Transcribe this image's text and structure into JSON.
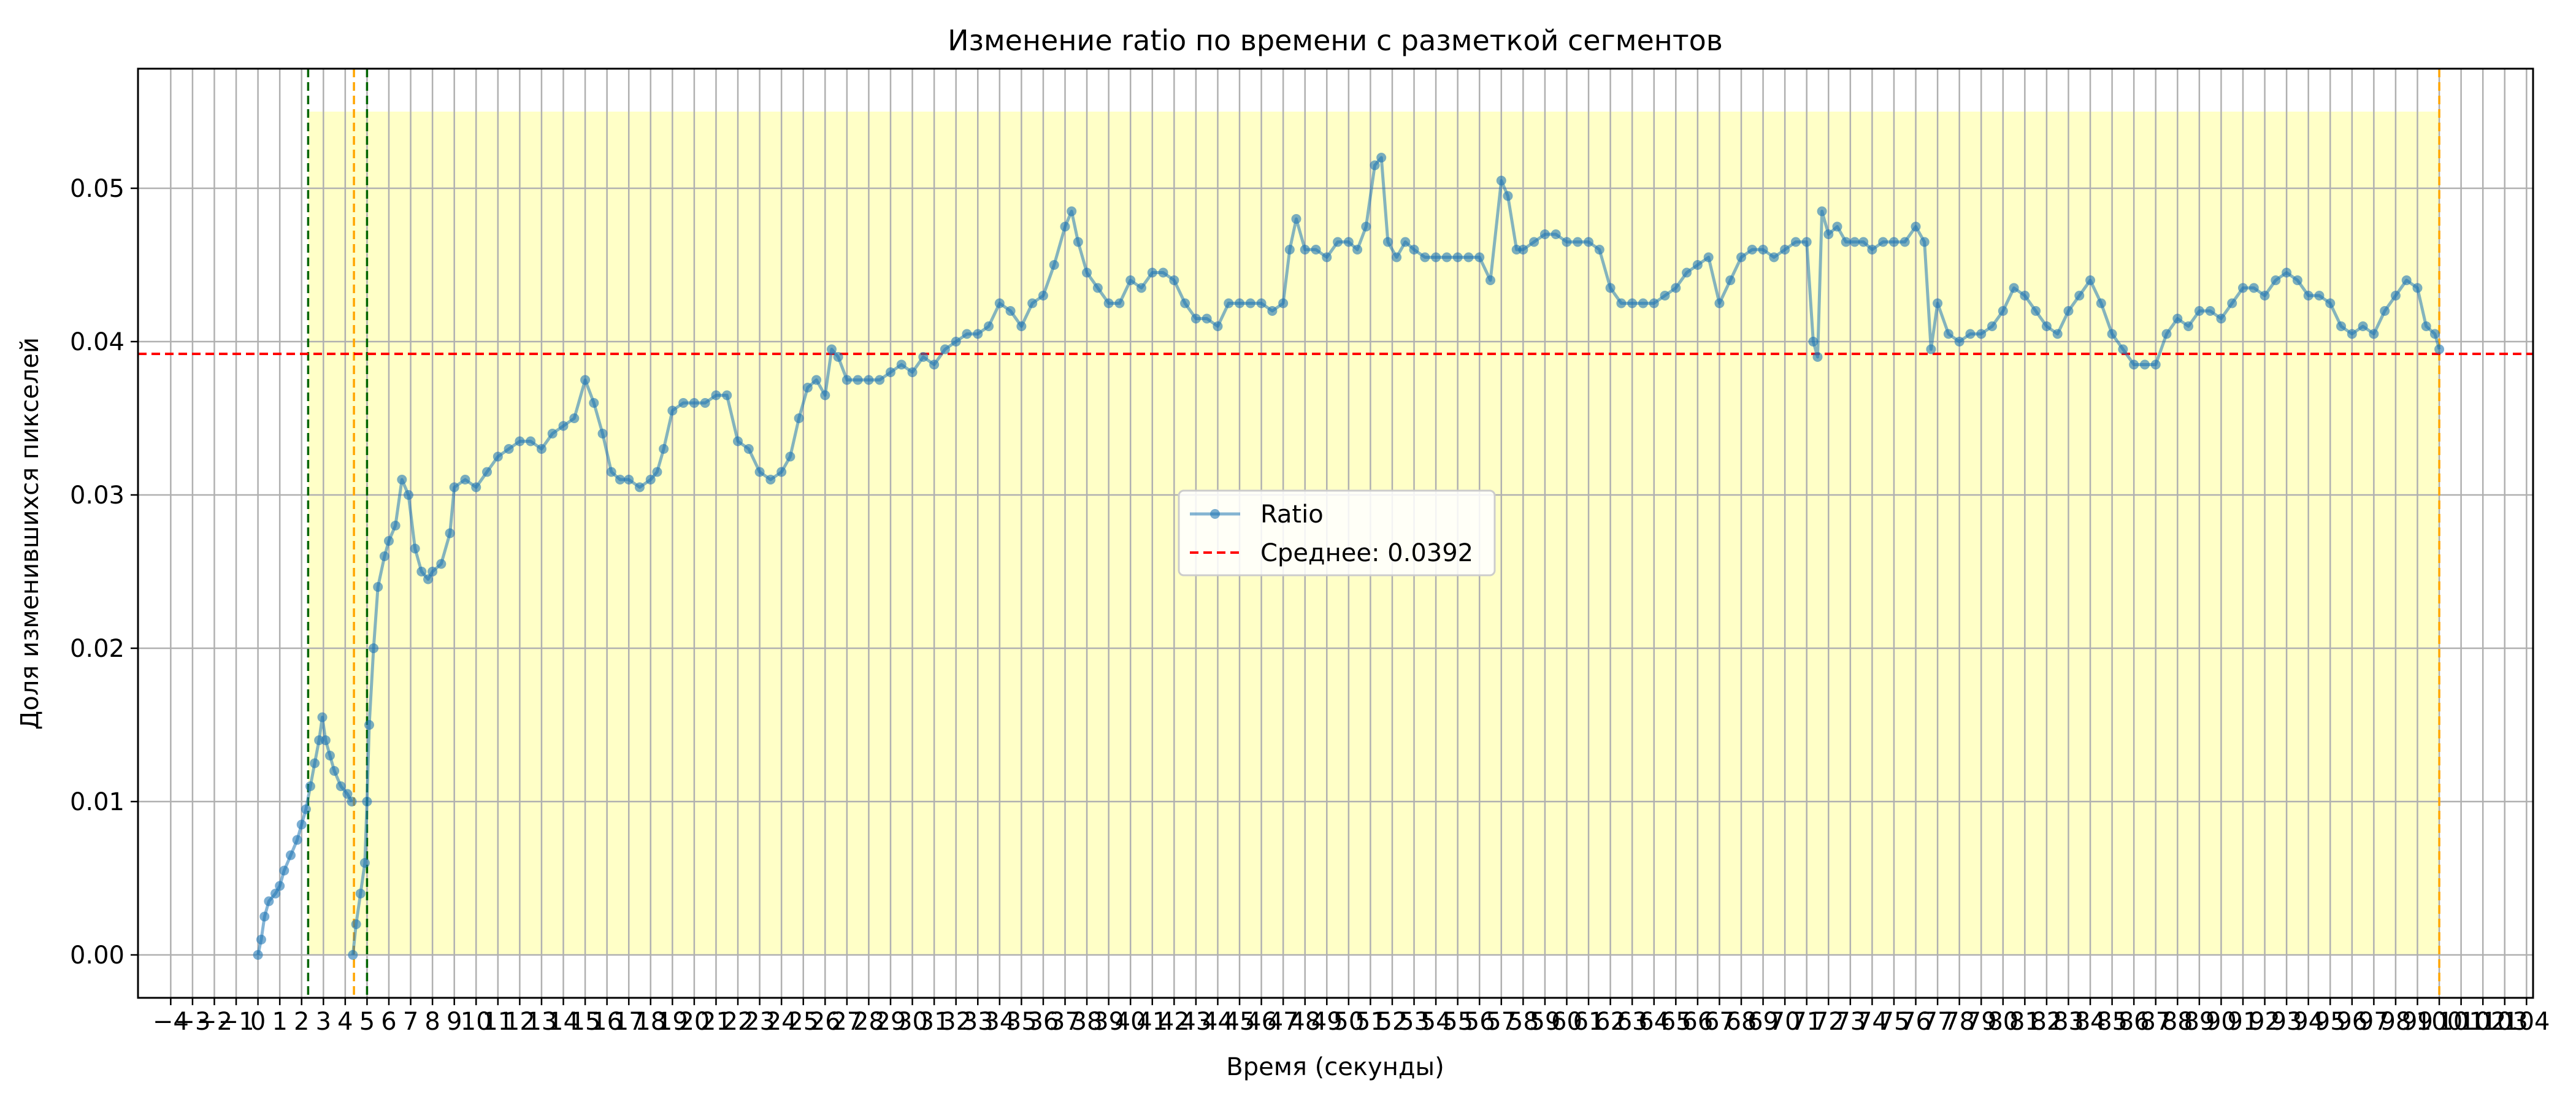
{
  "chart_data": {
    "type": "line",
    "title": "Изменение ratio по времени с разметкой сегментов",
    "xlabel": "Время (секунды)",
    "ylabel": "Доля изменившихся пикселей",
    "xlim": [
      -5.5,
      104.3
    ],
    "ylim": [
      -0.0028,
      0.0578
    ],
    "x_ticks": [
      -4,
      -3,
      -2,
      -1,
      0,
      1,
      2,
      3,
      4,
      5,
      6,
      7,
      8,
      9,
      10,
      11,
      12,
      13,
      14,
      15,
      16,
      17,
      18,
      19,
      20,
      21,
      22,
      23,
      24,
      25,
      26,
      27,
      28,
      29,
      30,
      31,
      32,
      33,
      34,
      35,
      36,
      37,
      38,
      39,
      40,
      41,
      42,
      43,
      44,
      45,
      46,
      47,
      48,
      49,
      50,
      51,
      52,
      53,
      54,
      55,
      56,
      57,
      58,
      59,
      60,
      61,
      62,
      63,
      64,
      65,
      66,
      67,
      68,
      69,
      70,
      71,
      72,
      73,
      74,
      75,
      76,
      77,
      78,
      79,
      80,
      81,
      82,
      83,
      84,
      85,
      86,
      87,
      88,
      89,
      90,
      91,
      92,
      93,
      94,
      95,
      96,
      97,
      98,
      99,
      100,
      101,
      102,
      103,
      104
    ],
    "y_ticks": [
      0.0,
      0.01,
      0.02,
      0.03,
      0.04,
      0.05
    ],
    "y_tick_labels": [
      "0.00",
      "0.01",
      "0.02",
      "0.03",
      "0.04",
      "0.05"
    ],
    "grid": true,
    "legend_position": "center",
    "series": [
      {
        "name": "Ratio",
        "color": "#1f77b4",
        "marker": "circle",
        "points": [
          [
            0.0,
            0.0
          ],
          [
            0.15,
            0.001
          ],
          [
            0.3,
            0.0025
          ],
          [
            0.5,
            0.0035
          ],
          [
            0.8,
            0.004
          ],
          [
            1.0,
            0.0045
          ],
          [
            1.2,
            0.0055
          ],
          [
            1.5,
            0.0065
          ],
          [
            1.8,
            0.0075
          ],
          [
            2.0,
            0.0085
          ],
          [
            2.2,
            0.0095
          ],
          [
            2.4,
            0.011
          ],
          [
            2.6,
            0.0125
          ],
          [
            2.8,
            0.014
          ],
          [
            2.95,
            0.0155
          ],
          [
            3.1,
            0.014
          ],
          [
            3.3,
            0.013
          ],
          [
            3.5,
            0.012
          ],
          [
            3.8,
            0.011
          ],
          [
            4.1,
            0.0105
          ],
          [
            4.3,
            0.01
          ],
          [
            4.35,
            0.0
          ],
          [
            4.5,
            0.002
          ],
          [
            4.7,
            0.004
          ],
          [
            4.9,
            0.006
          ],
          [
            5.0,
            0.01
          ],
          [
            5.1,
            0.015
          ],
          [
            5.3,
            0.02
          ],
          [
            5.5,
            0.024
          ],
          [
            5.8,
            0.026
          ],
          [
            6.0,
            0.027
          ],
          [
            6.3,
            0.028
          ],
          [
            6.6,
            0.031
          ],
          [
            6.9,
            0.03
          ],
          [
            7.2,
            0.0265
          ],
          [
            7.5,
            0.025
          ],
          [
            7.8,
            0.0245
          ],
          [
            8.0,
            0.025
          ],
          [
            8.4,
            0.0255
          ],
          [
            8.8,
            0.0275
          ],
          [
            9.0,
            0.0305
          ],
          [
            9.5,
            0.031
          ],
          [
            10.0,
            0.0305
          ],
          [
            10.5,
            0.0315
          ],
          [
            11.0,
            0.0325
          ],
          [
            11.5,
            0.033
          ],
          [
            12.0,
            0.0335
          ],
          [
            12.5,
            0.0335
          ],
          [
            13.0,
            0.033
          ],
          [
            13.5,
            0.034
          ],
          [
            14.0,
            0.0345
          ],
          [
            14.5,
            0.035
          ],
          [
            15.0,
            0.0375
          ],
          [
            15.4,
            0.036
          ],
          [
            15.8,
            0.034
          ],
          [
            16.2,
            0.0315
          ],
          [
            16.6,
            0.031
          ],
          [
            17.0,
            0.031
          ],
          [
            17.5,
            0.0305
          ],
          [
            18.0,
            0.031
          ],
          [
            18.3,
            0.0315
          ],
          [
            18.6,
            0.033
          ],
          [
            19.0,
            0.0355
          ],
          [
            19.5,
            0.036
          ],
          [
            20.0,
            0.036
          ],
          [
            20.5,
            0.036
          ],
          [
            21.0,
            0.0365
          ],
          [
            21.5,
            0.0365
          ],
          [
            22.0,
            0.0335
          ],
          [
            22.5,
            0.033
          ],
          [
            23.0,
            0.0315
          ],
          [
            23.5,
            0.031
          ],
          [
            24.0,
            0.0315
          ],
          [
            24.4,
            0.0325
          ],
          [
            24.8,
            0.035
          ],
          [
            25.2,
            0.037
          ],
          [
            25.6,
            0.0375
          ],
          [
            26.0,
            0.0365
          ],
          [
            26.3,
            0.0395
          ],
          [
            26.6,
            0.039
          ],
          [
            27.0,
            0.0375
          ],
          [
            27.5,
            0.0375
          ],
          [
            28.0,
            0.0375
          ],
          [
            28.5,
            0.0375
          ],
          [
            29.0,
            0.038
          ],
          [
            29.5,
            0.0385
          ],
          [
            30.0,
            0.038
          ],
          [
            30.5,
            0.039
          ],
          [
            31.0,
            0.0385
          ],
          [
            31.5,
            0.0395
          ],
          [
            32.0,
            0.04
          ],
          [
            32.5,
            0.0405
          ],
          [
            33.0,
            0.0405
          ],
          [
            33.5,
            0.041
          ],
          [
            34.0,
            0.0425
          ],
          [
            34.5,
            0.042
          ],
          [
            35.0,
            0.041
          ],
          [
            35.5,
            0.0425
          ],
          [
            36.0,
            0.043
          ],
          [
            36.5,
            0.045
          ],
          [
            37.0,
            0.0475
          ],
          [
            37.3,
            0.0485
          ],
          [
            37.6,
            0.0465
          ],
          [
            38.0,
            0.0445
          ],
          [
            38.5,
            0.0435
          ],
          [
            39.0,
            0.0425
          ],
          [
            39.5,
            0.0425
          ],
          [
            40.0,
            0.044
          ],
          [
            40.5,
            0.0435
          ],
          [
            41.0,
            0.0445
          ],
          [
            41.5,
            0.0445
          ],
          [
            42.0,
            0.044
          ],
          [
            42.5,
            0.0425
          ],
          [
            43.0,
            0.0415
          ],
          [
            43.5,
            0.0415
          ],
          [
            44.0,
            0.041
          ],
          [
            44.5,
            0.0425
          ],
          [
            45.0,
            0.0425
          ],
          [
            45.5,
            0.0425
          ],
          [
            46.0,
            0.0425
          ],
          [
            46.5,
            0.042
          ],
          [
            47.0,
            0.0425
          ],
          [
            47.3,
            0.046
          ],
          [
            47.6,
            0.048
          ],
          [
            48.0,
            0.046
          ],
          [
            48.5,
            0.046
          ],
          [
            49.0,
            0.0455
          ],
          [
            49.5,
            0.0465
          ],
          [
            50.0,
            0.0465
          ],
          [
            50.4,
            0.046
          ],
          [
            50.8,
            0.0475
          ],
          [
            51.2,
            0.0515
          ],
          [
            51.5,
            0.052
          ],
          [
            51.8,
            0.0465
          ],
          [
            52.2,
            0.0455
          ],
          [
            52.6,
            0.0465
          ],
          [
            53.0,
            0.046
          ],
          [
            53.5,
            0.0455
          ],
          [
            54.0,
            0.0455
          ],
          [
            54.5,
            0.0455
          ],
          [
            55.0,
            0.0455
          ],
          [
            55.5,
            0.0455
          ],
          [
            56.0,
            0.0455
          ],
          [
            56.5,
            0.044
          ],
          [
            57.0,
            0.0505
          ],
          [
            57.3,
            0.0495
          ],
          [
            57.7,
            0.046
          ],
          [
            58.0,
            0.046
          ],
          [
            58.5,
            0.0465
          ],
          [
            59.0,
            0.047
          ],
          [
            59.5,
            0.047
          ],
          [
            60.0,
            0.0465
          ],
          [
            60.5,
            0.0465
          ],
          [
            61.0,
            0.0465
          ],
          [
            61.5,
            0.046
          ],
          [
            62.0,
            0.0435
          ],
          [
            62.5,
            0.0425
          ],
          [
            63.0,
            0.0425
          ],
          [
            63.5,
            0.0425
          ],
          [
            64.0,
            0.0425
          ],
          [
            64.5,
            0.043
          ],
          [
            65.0,
            0.0435
          ],
          [
            65.5,
            0.0445
          ],
          [
            66.0,
            0.045
          ],
          [
            66.5,
            0.0455
          ],
          [
            67.0,
            0.0425
          ],
          [
            67.5,
            0.044
          ],
          [
            68.0,
            0.0455
          ],
          [
            68.5,
            0.046
          ],
          [
            69.0,
            0.046
          ],
          [
            69.5,
            0.0455
          ],
          [
            70.0,
            0.046
          ],
          [
            70.5,
            0.0465
          ],
          [
            71.0,
            0.0465
          ],
          [
            71.3,
            0.04
          ],
          [
            71.5,
            0.039
          ],
          [
            71.7,
            0.0485
          ],
          [
            72.0,
            0.047
          ],
          [
            72.4,
            0.0475
          ],
          [
            72.8,
            0.0465
          ],
          [
            73.2,
            0.0465
          ],
          [
            73.6,
            0.0465
          ],
          [
            74.0,
            0.046
          ],
          [
            74.5,
            0.0465
          ],
          [
            75.0,
            0.0465
          ],
          [
            75.5,
            0.0465
          ],
          [
            76.0,
            0.0475
          ],
          [
            76.4,
            0.0465
          ],
          [
            76.7,
            0.0395
          ],
          [
            77.0,
            0.0425
          ],
          [
            77.5,
            0.0405
          ],
          [
            78.0,
            0.04
          ],
          [
            78.5,
            0.0405
          ],
          [
            79.0,
            0.0405
          ],
          [
            79.5,
            0.041
          ],
          [
            80.0,
            0.042
          ],
          [
            80.5,
            0.0435
          ],
          [
            81.0,
            0.043
          ],
          [
            81.5,
            0.042
          ],
          [
            82.0,
            0.041
          ],
          [
            82.5,
            0.0405
          ],
          [
            83.0,
            0.042
          ],
          [
            83.5,
            0.043
          ],
          [
            84.0,
            0.044
          ],
          [
            84.5,
            0.0425
          ],
          [
            85.0,
            0.0405
          ],
          [
            85.5,
            0.0395
          ],
          [
            86.0,
            0.0385
          ],
          [
            86.5,
            0.0385
          ],
          [
            87.0,
            0.0385
          ],
          [
            87.5,
            0.0405
          ],
          [
            88.0,
            0.0415
          ],
          [
            88.5,
            0.041
          ],
          [
            89.0,
            0.042
          ],
          [
            89.5,
            0.042
          ],
          [
            90.0,
            0.0415
          ],
          [
            90.5,
            0.0425
          ],
          [
            91.0,
            0.0435
          ],
          [
            91.5,
            0.0435
          ],
          [
            92.0,
            0.043
          ],
          [
            92.5,
            0.044
          ],
          [
            93.0,
            0.0445
          ],
          [
            93.5,
            0.044
          ],
          [
            94.0,
            0.043
          ],
          [
            94.5,
            0.043
          ],
          [
            95.0,
            0.0425
          ],
          [
            95.5,
            0.041
          ],
          [
            96.0,
            0.0405
          ],
          [
            96.5,
            0.041
          ],
          [
            97.0,
            0.0405
          ],
          [
            97.5,
            0.042
          ],
          [
            98.0,
            0.043
          ],
          [
            98.5,
            0.044
          ],
          [
            99.0,
            0.0435
          ],
          [
            99.4,
            0.041
          ],
          [
            99.8,
            0.0405
          ],
          [
            100.0,
            0.0395
          ]
        ]
      }
    ],
    "mean_line": {
      "name": "Среднее: 0.0392",
      "value": 0.0392,
      "color": "#ff0000",
      "style": "dashed"
    },
    "vertical_lines": [
      {
        "x": 2.3,
        "color": "#006400",
        "style": "dashed"
      },
      {
        "x": 4.4,
        "color": "#ffa500",
        "style": "dashed"
      },
      {
        "x": 5.0,
        "color": "#006400",
        "style": "dashed"
      },
      {
        "x": 100.0,
        "color": "#ffa500",
        "style": "dashed"
      }
    ],
    "shaded_region": {
      "x_start": 2.3,
      "x_end": 100.0,
      "y_start": 0.0,
      "y_end": 0.055,
      "color": "#ffff99"
    }
  }
}
